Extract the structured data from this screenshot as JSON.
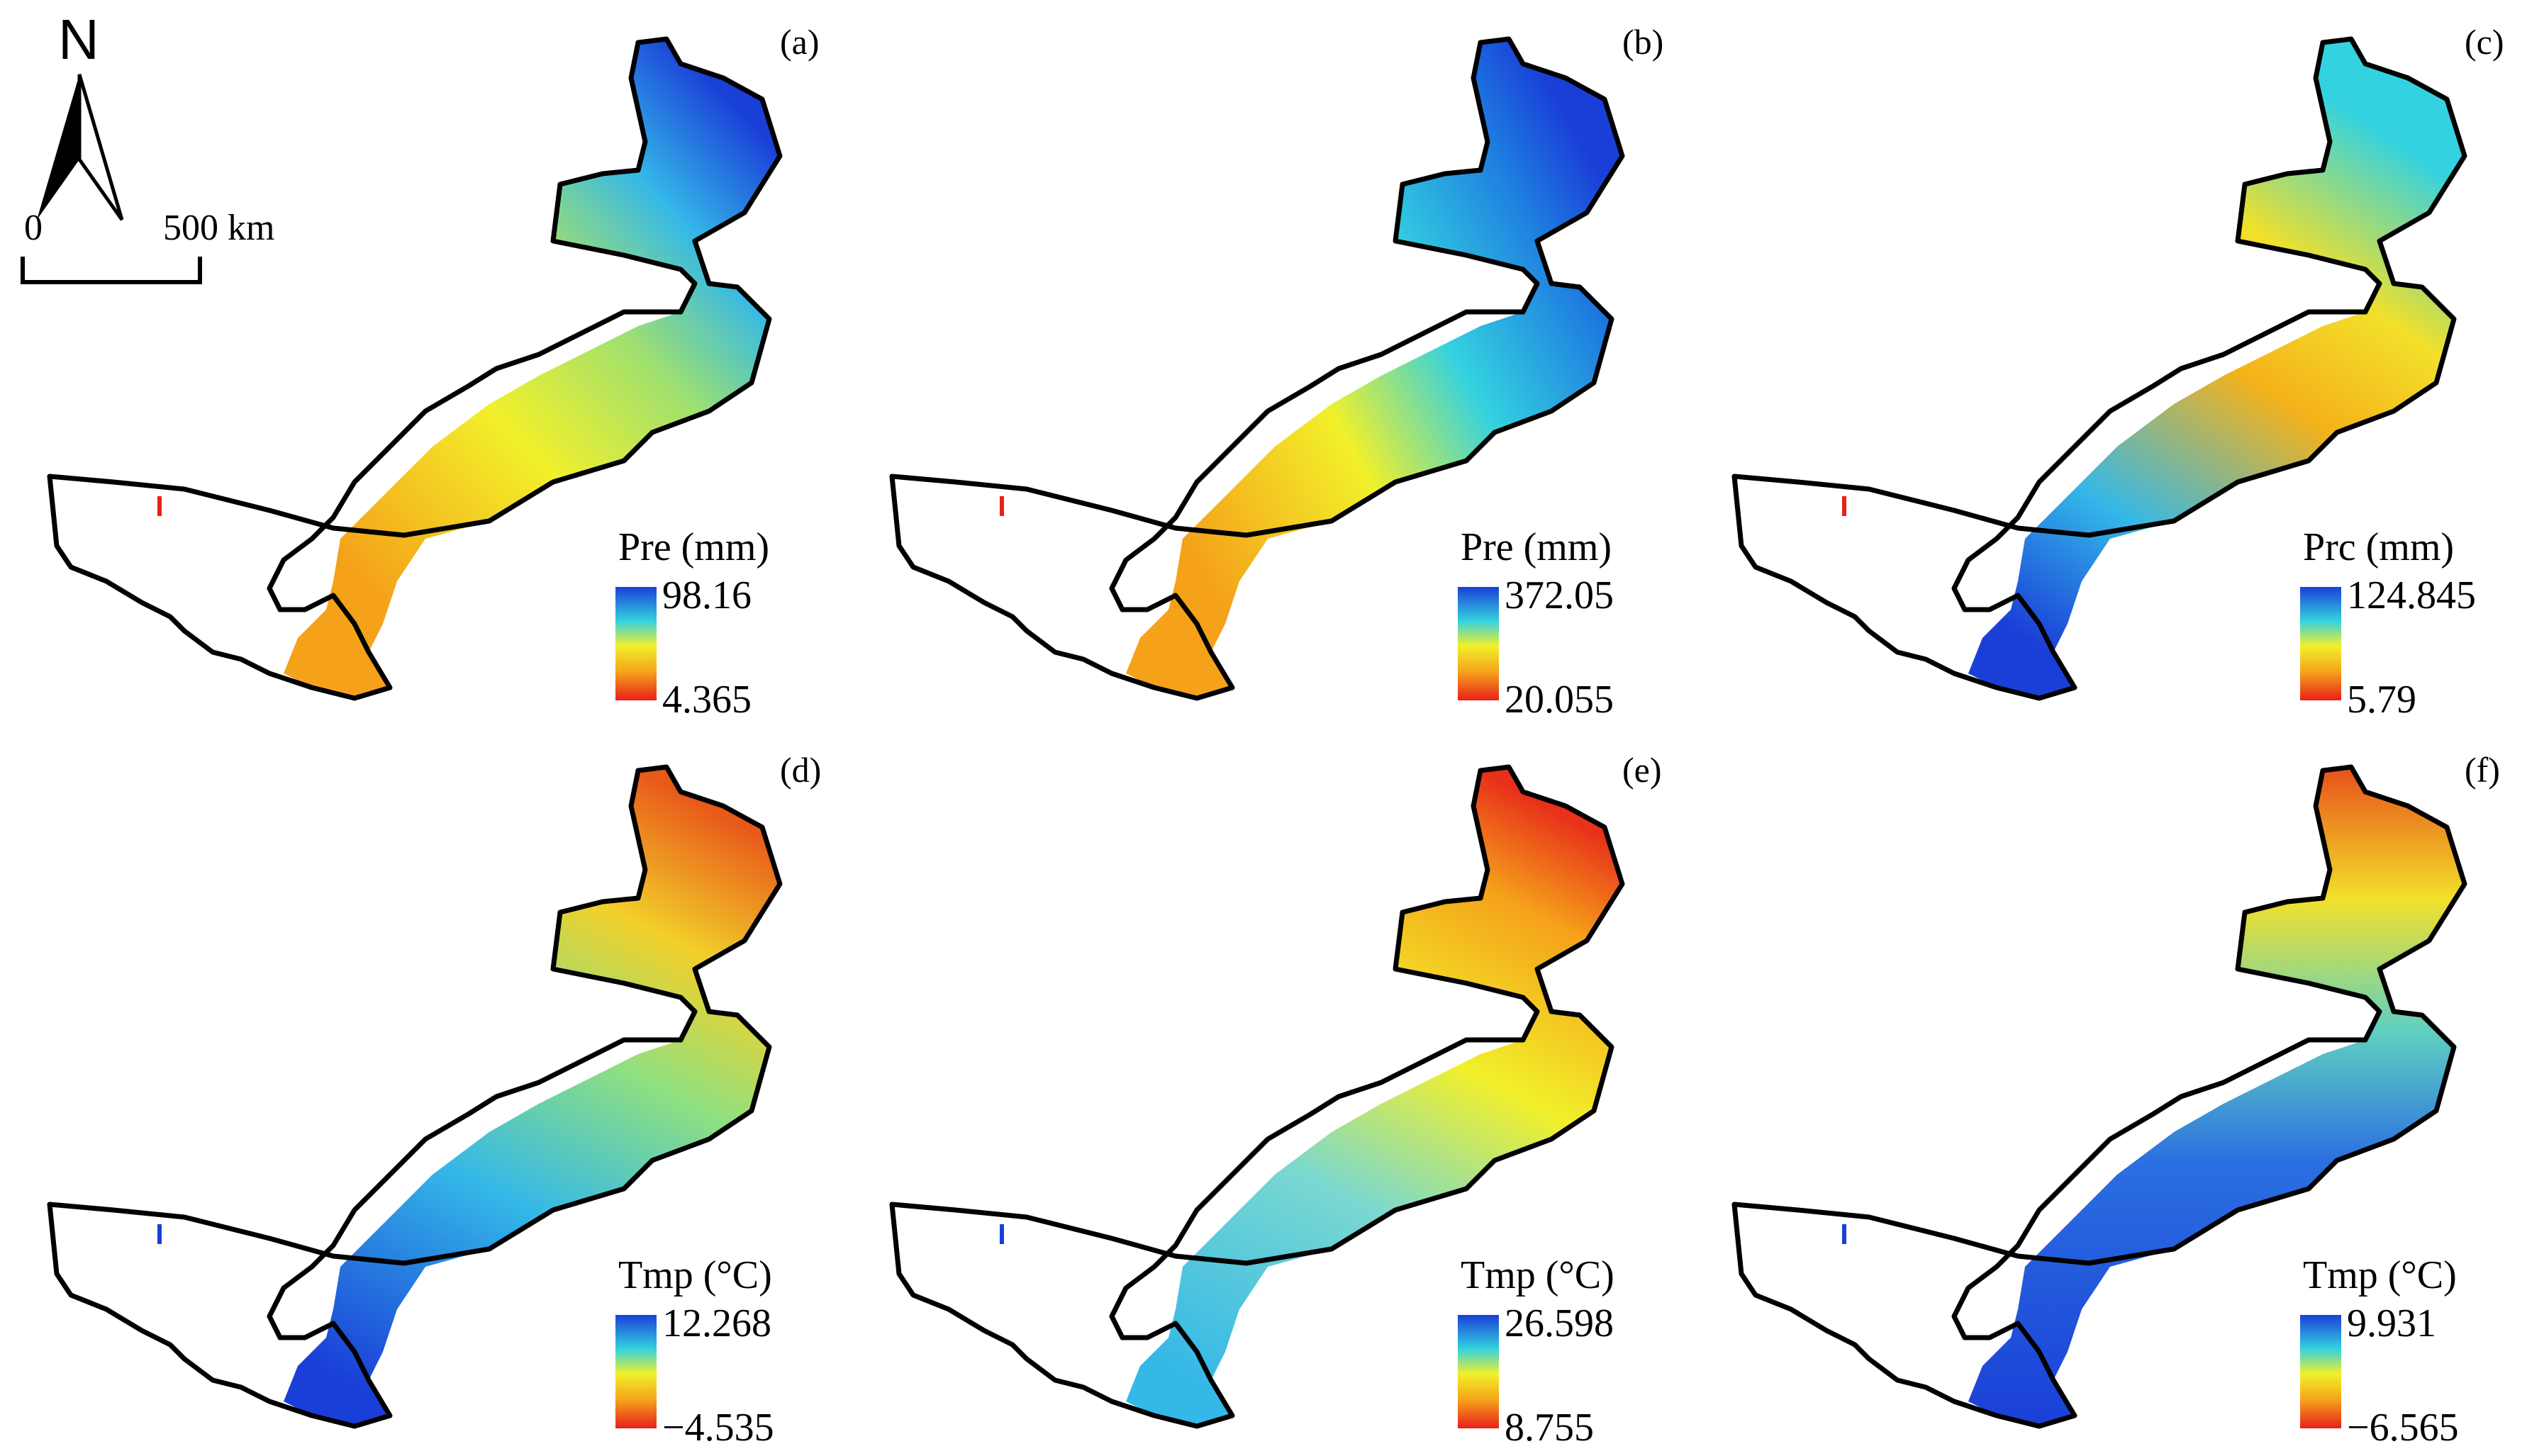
{
  "north_arrow": {
    "letter": "N",
    "scale_start": "0",
    "scale_end": "500 km"
  },
  "panels": [
    {
      "label": "(a)",
      "legend_title": "Pre (mm)",
      "max": "98.16",
      "min": "4.365",
      "ramp": "pre",
      "pattern": "north"
    },
    {
      "label": "(b)",
      "legend_title": "Pre (mm)",
      "max": "372.05",
      "min": "20.055",
      "ramp": "pre",
      "pattern": "east"
    },
    {
      "label": "(c)",
      "legend_title": "Prc (mm)",
      "max": "124.845",
      "min": "5.79",
      "ramp": "pre",
      "pattern": "southwest"
    },
    {
      "label": "(d)",
      "legend_title": "Tmp (°C)",
      "max": "12.268",
      "min": "−4.535",
      "ramp": "tmp",
      "pattern": "south"
    },
    {
      "label": "(e)",
      "legend_title": "Tmp (°C)",
      "max": "26.598",
      "min": "8.755",
      "ramp": "tmp",
      "pattern": "south-light"
    },
    {
      "label": "(f)",
      "legend_title": "Tmp (°C)",
      "max": "9.931",
      "min": "−6.565",
      "ramp": "tmp",
      "pattern": "southeast"
    }
  ],
  "colors": {
    "ramp_low": "#e8201a",
    "ramp_mid_low": "#f5a21a",
    "ramp_mid": "#f2f02a",
    "ramp_mid_high": "#34d2e0",
    "ramp_high": "#1a3fd8",
    "outline": "#000000",
    "no_data": "#ffffff"
  }
}
